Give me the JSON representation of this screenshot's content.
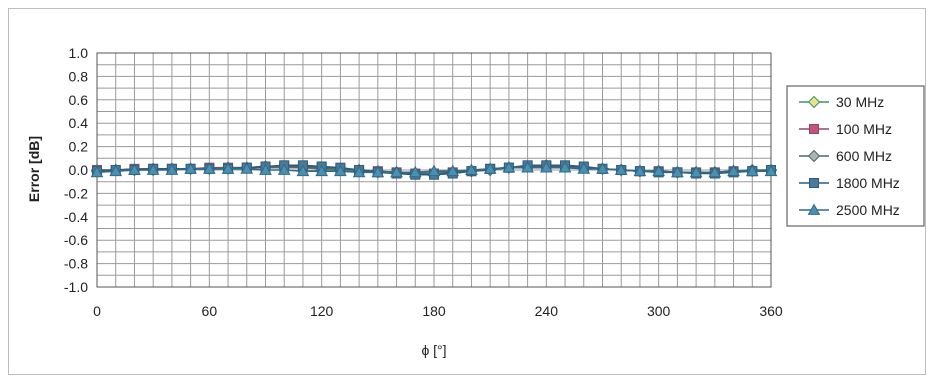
{
  "chart_data": {
    "type": "line",
    "title": "",
    "xlabel": "ϕ [°]",
    "ylabel": "Error [dB]",
    "xlim": [
      0,
      360
    ],
    "ylim": [
      -1.0,
      1.0
    ],
    "xticks": [
      "0",
      "60",
      "120",
      "180",
      "240",
      "300",
      "360"
    ],
    "yticks": [
      "1.0",
      "0.8",
      "0.6",
      "0.4",
      "0.2",
      "0.0",
      "-0.2",
      "-0.4",
      "-0.6",
      "-0.8",
      "-1.0"
    ],
    "grid": true,
    "legend_position": "right",
    "x": [
      0,
      10,
      20,
      30,
      40,
      50,
      60,
      70,
      80,
      90,
      100,
      110,
      120,
      130,
      140,
      150,
      160,
      170,
      180,
      190,
      200,
      210,
      220,
      230,
      240,
      250,
      260,
      270,
      280,
      290,
      300,
      310,
      320,
      330,
      340,
      350,
      360
    ],
    "series": [
      {
        "name": "30 MHz",
        "marker": "diamond",
        "color": "#3f8f6a",
        "fill": "#e8e28a",
        "values": [
          0.0,
          0.0,
          0.0,
          0.0,
          0.01,
          0.01,
          0.01,
          0.01,
          0.02,
          0.02,
          0.02,
          0.02,
          0.01,
          0.0,
          -0.01,
          -0.02,
          -0.02,
          -0.03,
          -0.03,
          -0.02,
          -0.01,
          0.0,
          0.02,
          0.03,
          0.03,
          0.03,
          0.02,
          0.01,
          0.0,
          -0.01,
          -0.01,
          -0.02,
          -0.02,
          -0.02,
          -0.01,
          -0.01,
          0.0
        ]
      },
      {
        "name": "100 MHz",
        "marker": "square",
        "color": "#8a4a68",
        "fill": "#c8507a",
        "values": [
          0.0,
          0.0,
          0.01,
          0.01,
          0.01,
          0.01,
          0.02,
          0.02,
          0.02,
          0.02,
          0.03,
          0.02,
          0.02,
          0.01,
          0.0,
          -0.01,
          -0.02,
          -0.03,
          -0.03,
          -0.02,
          -0.01,
          0.01,
          0.02,
          0.03,
          0.03,
          0.03,
          0.02,
          0.01,
          0.0,
          -0.01,
          -0.01,
          -0.02,
          -0.02,
          -0.02,
          -0.01,
          -0.01,
          0.0
        ]
      },
      {
        "name": "600 MHz",
        "marker": "diamond",
        "color": "#4a6a6a",
        "fill": "#a8b8b0",
        "values": [
          -0.01,
          0.0,
          0.0,
          0.01,
          0.01,
          0.01,
          0.01,
          0.02,
          0.02,
          0.03,
          0.03,
          0.03,
          0.02,
          0.01,
          0.0,
          -0.01,
          -0.02,
          -0.03,
          -0.03,
          -0.02,
          -0.01,
          0.0,
          0.02,
          0.03,
          0.04,
          0.03,
          0.02,
          0.01,
          0.0,
          -0.01,
          -0.01,
          -0.02,
          -0.02,
          -0.02,
          -0.01,
          0.0,
          0.0
        ]
      },
      {
        "name": "1800 MHz",
        "marker": "square",
        "color": "#2f5a7a",
        "fill": "#4a7a9a",
        "values": [
          -0.01,
          0.0,
          0.0,
          0.01,
          0.01,
          0.01,
          0.01,
          0.01,
          0.02,
          0.03,
          0.04,
          0.04,
          0.03,
          0.02,
          0.0,
          -0.02,
          -0.03,
          -0.04,
          -0.04,
          -0.03,
          -0.01,
          0.01,
          0.02,
          0.04,
          0.04,
          0.04,
          0.03,
          0.01,
          0.0,
          -0.01,
          -0.02,
          -0.02,
          -0.03,
          -0.03,
          -0.02,
          -0.01,
          0.0
        ]
      },
      {
        "name": "2500 MHz",
        "marker": "triangle",
        "color": "#2f6a8a",
        "fill": "#4a90b0",
        "values": [
          -0.02,
          -0.01,
          0.0,
          0.0,
          0.0,
          0.01,
          0.01,
          0.01,
          0.01,
          0.0,
          0.0,
          -0.01,
          -0.01,
          -0.01,
          -0.02,
          -0.02,
          -0.02,
          -0.02,
          -0.01,
          -0.01,
          0.0,
          0.01,
          0.02,
          0.02,
          0.02,
          0.02,
          0.01,
          0.01,
          0.0,
          -0.01,
          -0.01,
          -0.02,
          -0.02,
          -0.02,
          -0.01,
          -0.01,
          -0.01
        ]
      }
    ]
  }
}
